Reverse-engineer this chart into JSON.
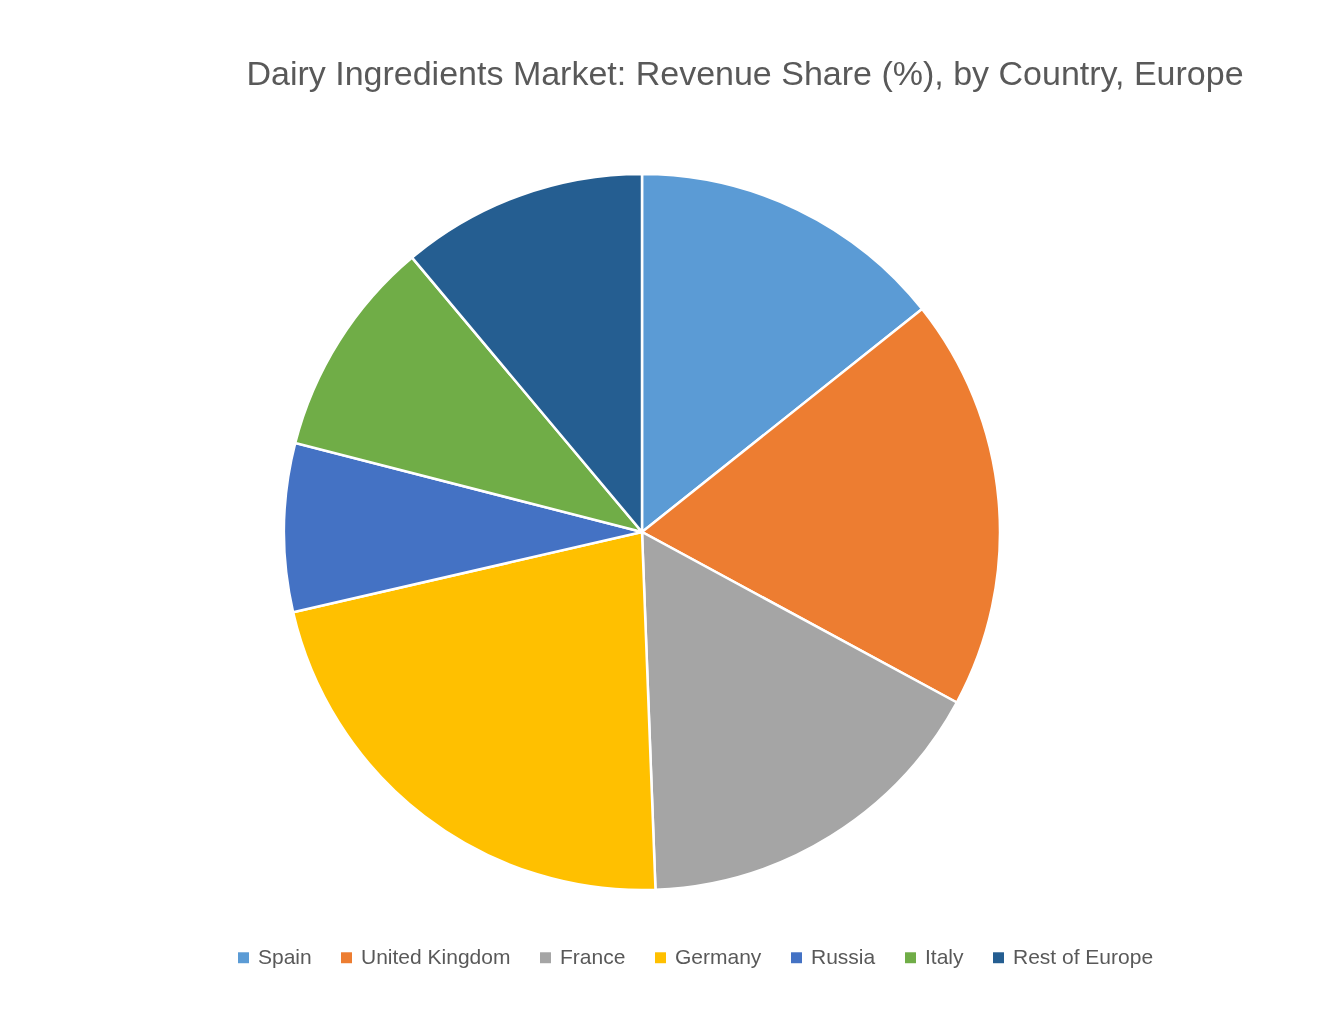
{
  "chart_data": {
    "type": "pie",
    "title": "Dairy Ingredients Market: Revenue Share (%), by Country, Europe",
    "categories": [
      "Spain",
      "United Kingdom",
      "France",
      "Germany",
      "Russia",
      "Italy",
      "Rest of Europe"
    ],
    "values": [
      14.3,
      18.6,
      16.5,
      22.0,
      7.6,
      9.9,
      11.1
    ],
    "colors": [
      "#5b9bd5",
      "#ed7d31",
      "#a5a5a5",
      "#ffc000",
      "#4472c4",
      "#70ad47",
      "#255e91"
    ],
    "legend": "bottom"
  }
}
